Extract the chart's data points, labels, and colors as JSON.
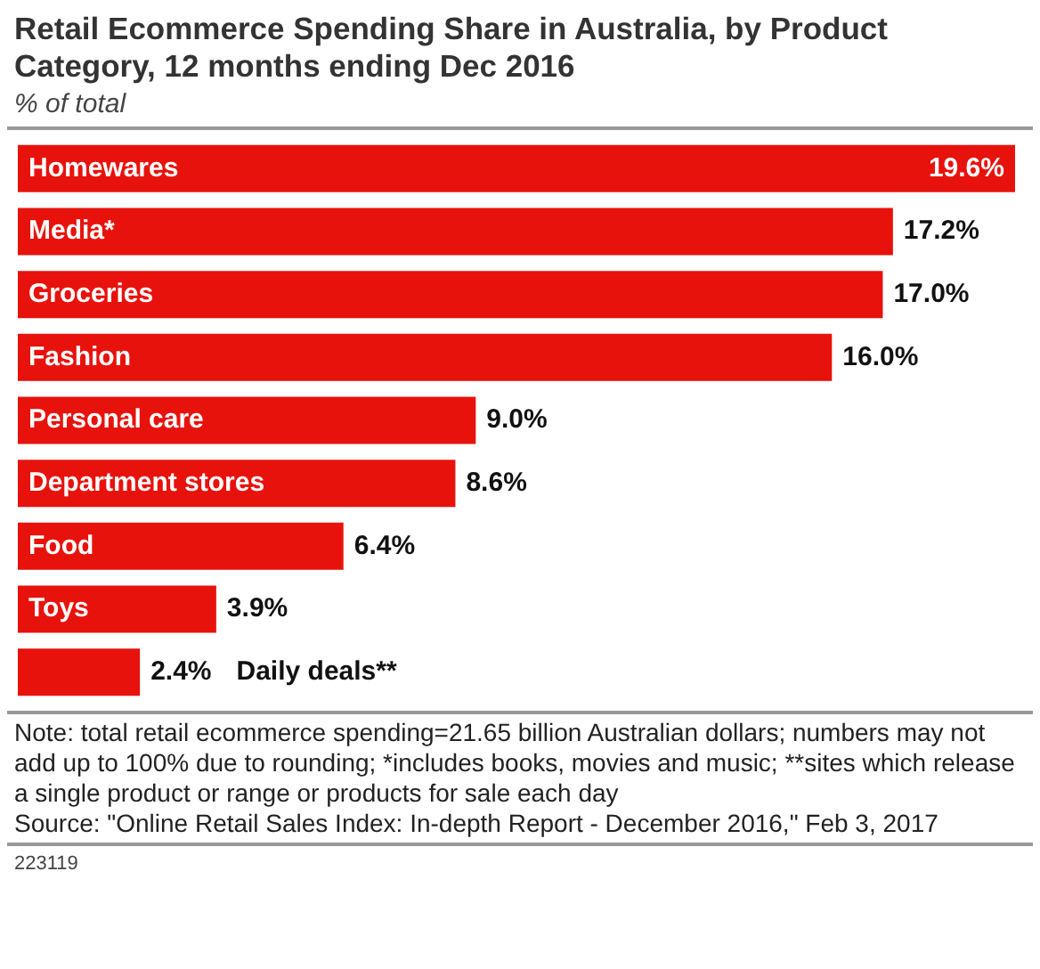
{
  "chart_data": {
    "type": "bar",
    "orientation": "horizontal",
    "title": "Retail Ecommerce Spending Share in Australia, by Product Category, 12 months ending Dec 2016",
    "subtitle": "% of total",
    "categories": [
      "Homewares",
      "Media*",
      "Groceries",
      "Fashion",
      "Personal care",
      "Department stores",
      "Food",
      "Toys",
      "Daily deals**"
    ],
    "values": [
      19.6,
      17.2,
      17.0,
      16.0,
      9.0,
      8.6,
      6.4,
      3.9,
      2.4
    ],
    "value_labels": [
      "19.6%",
      "17.2%",
      "17.0%",
      "16.0%",
      "9.0%",
      "8.6%",
      "6.4%",
      "3.9%",
      "2.4%"
    ],
    "color": "#e8120c",
    "annotations": [
      "Note: total retail ecommerce spending=21.65 billion Australian dollars; numbers may not add up to 100% due to rounding; *includes books, movies and music; **sites which release a single product or range or products for sale each day",
      "Source: \"Online Retail Sales Index: In-depth Report - December 2016,\" Feb 3, 2017",
      "223119"
    ]
  }
}
